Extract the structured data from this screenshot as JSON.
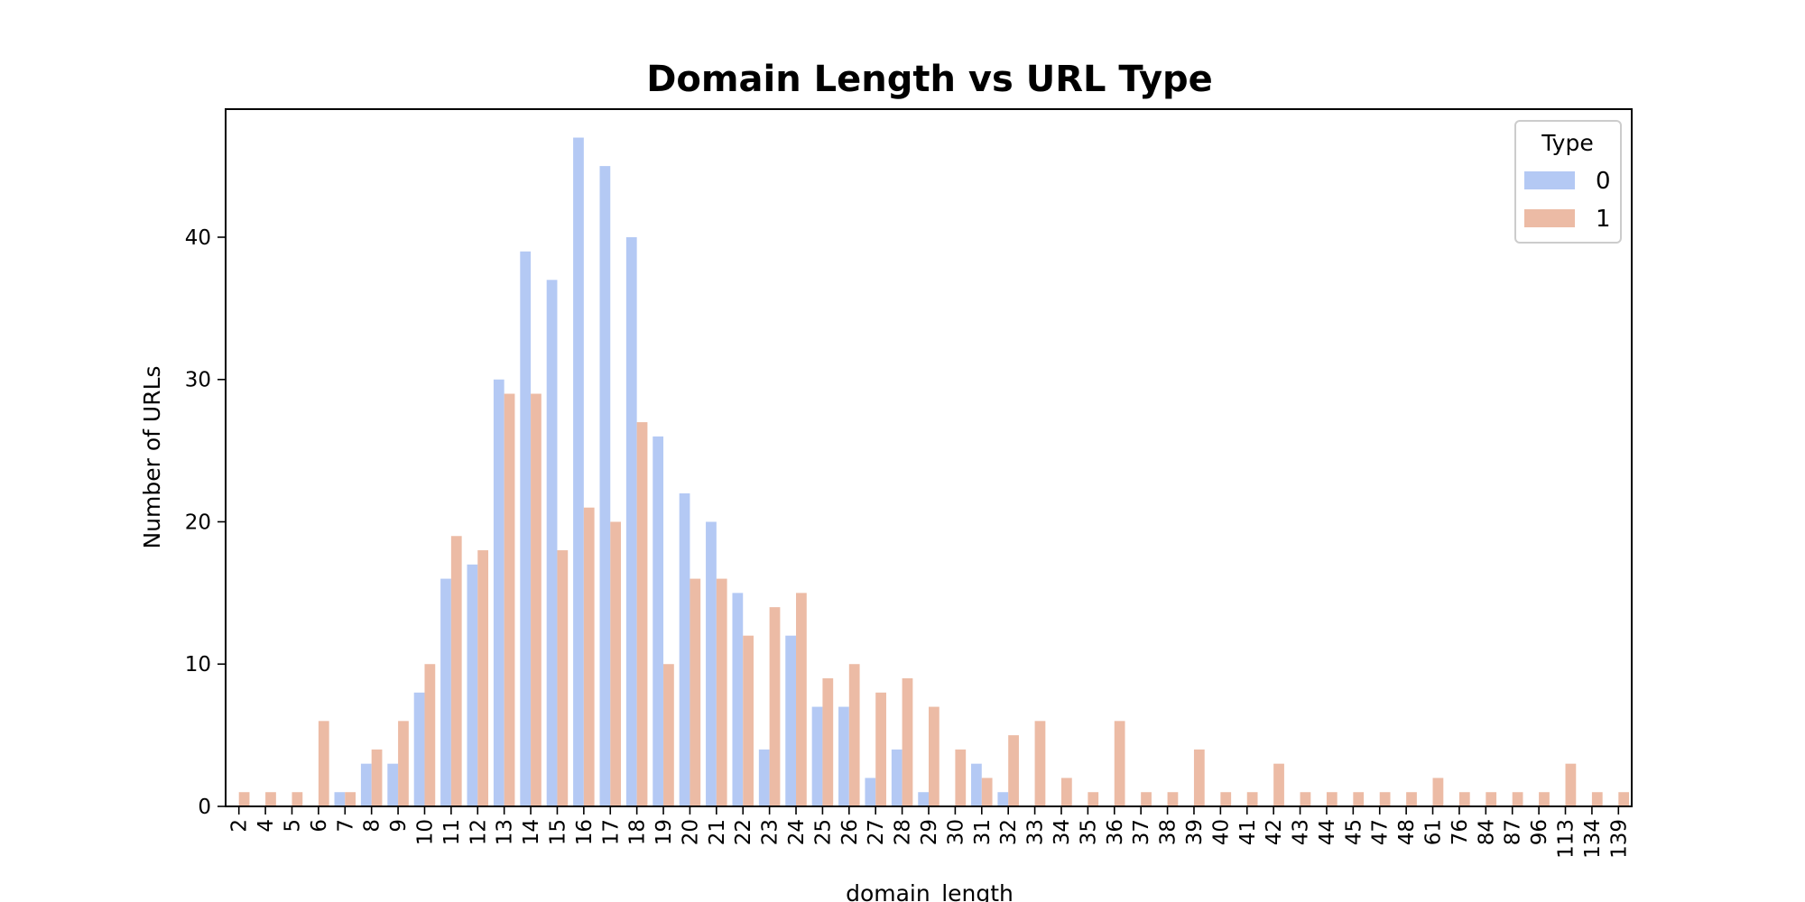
{
  "chart_data": {
    "type": "bar",
    "title": "Domain Length vs URL Type",
    "xlabel": "domain_length",
    "ylabel": "Number of URLs",
    "ylim": [
      0,
      49
    ],
    "yticks": [
      0,
      10,
      20,
      30,
      40
    ],
    "grid": false,
    "legend": {
      "title": "Type",
      "placement": "top-right"
    },
    "categories": [
      "2",
      "4",
      "5",
      "6",
      "7",
      "8",
      "9",
      "10",
      "11",
      "12",
      "13",
      "14",
      "15",
      "16",
      "17",
      "18",
      "19",
      "20",
      "21",
      "22",
      "23",
      "24",
      "25",
      "26",
      "27",
      "28",
      "29",
      "30",
      "31",
      "32",
      "33",
      "34",
      "35",
      "36",
      "37",
      "38",
      "39",
      "40",
      "41",
      "42",
      "43",
      "44",
      "45",
      "47",
      "48",
      "61",
      "76",
      "84",
      "87",
      "96",
      "113",
      "134",
      "139"
    ],
    "series": [
      {
        "name": "0",
        "color": "#b4c9f4",
        "values": [
          0,
          0,
          0,
          0,
          1,
          3,
          3,
          8,
          16,
          17,
          30,
          39,
          37,
          47,
          45,
          40,
          26,
          22,
          20,
          15,
          4,
          12,
          7,
          7,
          2,
          4,
          1,
          0,
          3,
          1,
          0,
          0,
          0,
          0,
          0,
          0,
          0,
          0,
          0,
          0,
          0,
          0,
          0,
          0,
          0,
          0,
          0,
          0,
          0,
          0,
          0,
          0,
          0
        ]
      },
      {
        "name": "1",
        "color": "#ecbba5",
        "values": [
          1,
          1,
          1,
          6,
          1,
          4,
          6,
          10,
          19,
          18,
          29,
          29,
          18,
          21,
          20,
          27,
          10,
          16,
          16,
          12,
          14,
          15,
          9,
          10,
          8,
          9,
          7,
          4,
          2,
          5,
          6,
          2,
          1,
          6,
          1,
          1,
          4,
          1,
          1,
          3,
          1,
          1,
          1,
          1,
          1,
          2,
          1,
          1,
          1,
          1,
          3,
          1,
          1
        ]
      }
    ]
  }
}
